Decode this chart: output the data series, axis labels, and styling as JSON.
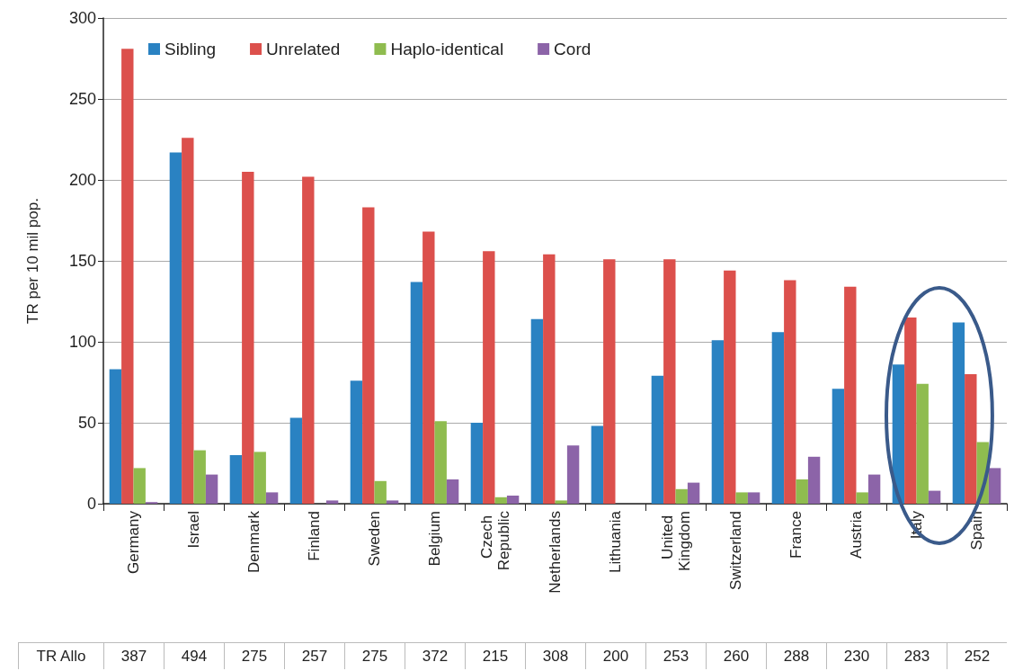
{
  "chart_data": {
    "type": "bar",
    "categories": [
      "Germany",
      "Israel",
      "Denmark",
      "Finland",
      "Sweden",
      "Belgium",
      "Czech Republic",
      "Netherlands",
      "Lithuania",
      "United Kingdom",
      "Switzerland",
      "France",
      "Austria",
      "Italy",
      "Spain"
    ],
    "series": [
      {
        "name": "Sibling",
        "color": "#2a82c2",
        "values": [
          83,
          217,
          30,
          53,
          76,
          137,
          50,
          114,
          48,
          79,
          101,
          106,
          71,
          86,
          112
        ]
      },
      {
        "name": "Unrelated",
        "color": "#dc504c",
        "values": [
          281,
          226,
          205,
          202,
          183,
          168,
          156,
          154,
          151,
          151,
          144,
          138,
          134,
          115,
          80
        ]
      },
      {
        "name": "Haplo-identical",
        "color": "#8fbc4f",
        "values": [
          22,
          33,
          32,
          0,
          14,
          51,
          4,
          2,
          0,
          9,
          7,
          15,
          7,
          74,
          38
        ]
      },
      {
        "name": "Cord",
        "color": "#8c64a8",
        "values": [
          1,
          18,
          7,
          2,
          2,
          15,
          5,
          36,
          0,
          13,
          7,
          29,
          18,
          8,
          22
        ]
      }
    ],
    "ylabel": "TR per 10 mil pop.",
    "ylim": [
      0,
      300
    ],
    "yticks": [
      0,
      50,
      100,
      150,
      200,
      250,
      300
    ],
    "grid": "y",
    "legend": "top left",
    "annotations": [
      "TR Allo",
      "387",
      "494",
      "275",
      "257",
      "275",
      "372",
      "215",
      "308",
      "200",
      "253",
      "260",
      "288",
      "230",
      "283",
      "252"
    ]
  }
}
